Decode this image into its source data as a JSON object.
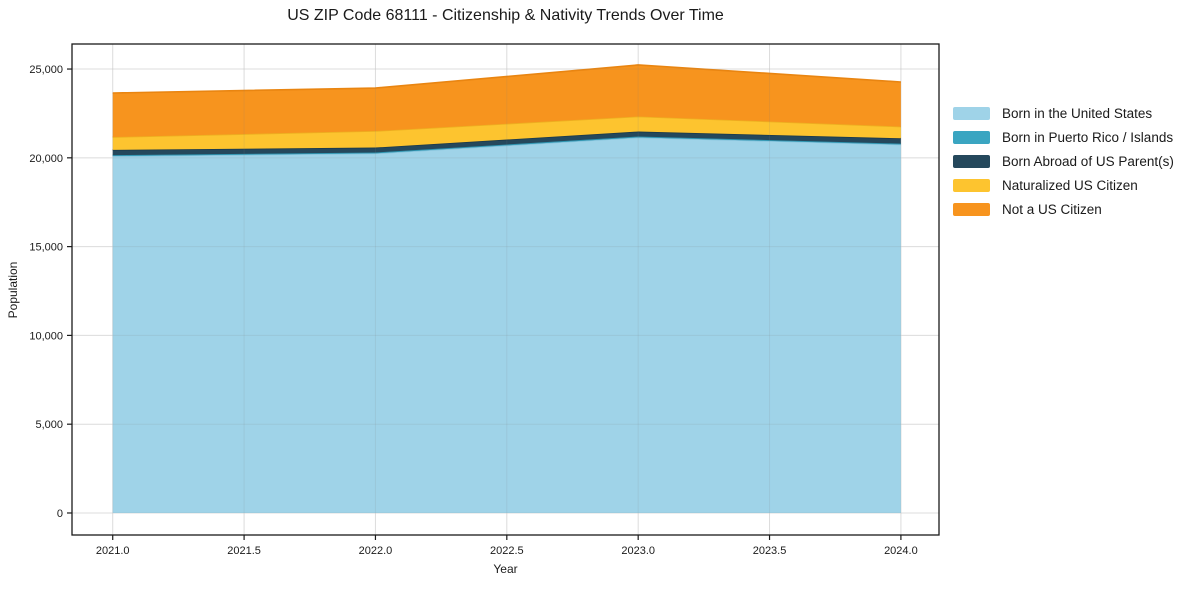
{
  "chart_data": {
    "type": "area",
    "stacked": true,
    "title": "US ZIP Code 68111 - Citizenship & Nativity Trends Over Time",
    "xlabel": "Year",
    "ylabel": "Population",
    "x": [
      2021,
      2022,
      2023,
      2024
    ],
    "series": [
      {
        "name": "Born in the United States",
        "color": "#9fd3e8",
        "edge": "#86c3dc",
        "values": [
          20100,
          20250,
          21150,
          20750
        ]
      },
      {
        "name": "Born in Puerto Rico / Islands",
        "color": "#3aa5c1",
        "edge": "#2e93ae",
        "values": [
          50,
          50,
          50,
          50
        ]
      },
      {
        "name": "Born Abroad of US Parent(s)",
        "color": "#25485c",
        "edge": "#1c3a4b",
        "values": [
          300,
          280,
          280,
          300
        ]
      },
      {
        "name": "Naturalized US Citizen",
        "color": "#fdc42f",
        "edge": "#edb020",
        "values": [
          720,
          930,
          850,
          660
        ]
      },
      {
        "name": "Not a US Citizen",
        "color": "#f7941e",
        "edge": "#e98511",
        "values": [
          2480,
          2420,
          2900,
          2510
        ]
      }
    ],
    "xlim": [
      2020.845,
      2024.145
    ],
    "ylim": [
      -1240,
      26410
    ],
    "xticks": [
      2021.0,
      2021.5,
      2022.0,
      2022.5,
      2023.0,
      2023.5,
      2024.0
    ],
    "xtick_labels": [
      "2021.0",
      "2021.5",
      "2022.0",
      "2022.5",
      "2023.0",
      "2023.5",
      "2024.0"
    ],
    "yticks": [
      0,
      5000,
      10000,
      15000,
      20000,
      25000
    ],
    "ytick_labels": [
      "0",
      "5,000",
      "10,000",
      "15,000",
      "20,000",
      "25,000"
    ],
    "grid": true,
    "legend_position": "right-outside",
    "colors": {
      "spine": "#1a1a1a",
      "grid_under": "#ececec",
      "grid_over_rgba": "rgba(130,130,130,0.14)",
      "tick_text": "#1a1a1a",
      "background": "#ffffff"
    }
  }
}
